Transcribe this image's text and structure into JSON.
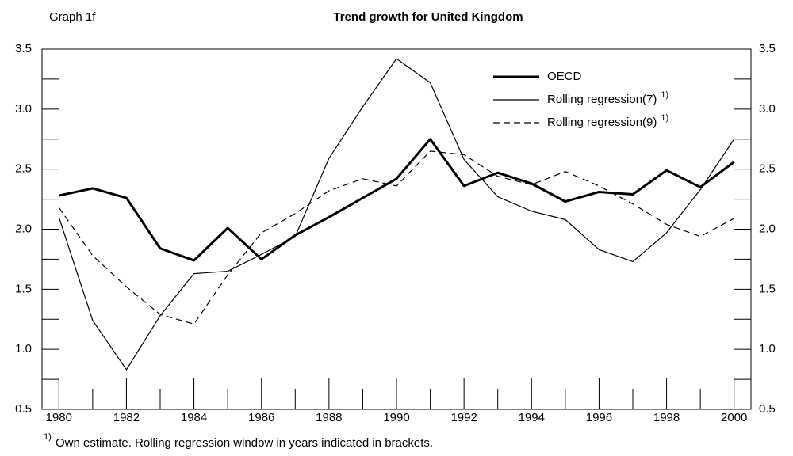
{
  "chart_data": {
    "type": "line",
    "label": "Graph 1f",
    "title": "Trend growth for United Kingdom",
    "x": [
      1980,
      1981,
      1982,
      1983,
      1984,
      1985,
      1986,
      1987,
      1988,
      1989,
      1990,
      1991,
      1992,
      1993,
      1994,
      1995,
      1996,
      1997,
      1998,
      1999,
      2000
    ],
    "series": [
      {
        "name": "OECD",
        "color": "#000000",
        "width": 3,
        "style": "solid",
        "values": [
          2.28,
          2.34,
          2.26,
          1.84,
          1.74,
          2.01,
          1.75,
          1.95,
          2.1,
          2.26,
          2.42,
          2.75,
          2.36,
          2.47,
          2.38,
          2.23,
          2.31,
          2.29,
          2.49,
          2.35,
          2.56
        ]
      },
      {
        "name": "Rolling regression(7)",
        "note": "1)",
        "color": "#000000",
        "width": 1.2,
        "style": "solid",
        "values": [
          2.1,
          1.24,
          0.83,
          1.28,
          1.63,
          1.65,
          1.79,
          1.94,
          2.59,
          3.02,
          3.42,
          3.22,
          2.58,
          2.27,
          2.15,
          2.08,
          1.83,
          1.73,
          1.97,
          2.33,
          2.75
        ]
      },
      {
        "name": "Rolling regression(9)",
        "note": "1)",
        "color": "#000000",
        "width": 1.2,
        "style": "dashed",
        "values": [
          2.18,
          1.78,
          1.52,
          1.29,
          1.21,
          1.62,
          1.97,
          2.13,
          2.32,
          2.42,
          2.36,
          2.65,
          2.62,
          2.44,
          2.37,
          2.48,
          2.36,
          2.21,
          2.04,
          1.94,
          2.09
        ]
      }
    ],
    "xlim": [
      1979.5,
      2000.5
    ],
    "xticks": [
      1980,
      1982,
      1984,
      1986,
      1988,
      1990,
      1992,
      1994,
      1996,
      1998,
      2000
    ],
    "xminorticks": [
      1981,
      1983,
      1985,
      1987,
      1989,
      1991,
      1993,
      1995,
      1997,
      1999
    ],
    "ylim": [
      0.5,
      3.5
    ],
    "yticks": [
      {
        "value": 0.5,
        "label": "0.5"
      },
      {
        "value": 1,
        "label": "1.0"
      },
      {
        "value": 1.5,
        "label": "1.5"
      },
      {
        "value": 2,
        "label": "2.0"
      },
      {
        "value": 2.5,
        "label": "2.5"
      },
      {
        "value": 3,
        "label": "3.0"
      },
      {
        "value": 3.5,
        "label": "3.5"
      }
    ],
    "yminorticks": [
      0.75,
      1.25,
      1.75,
      2.25,
      2.75,
      3.25
    ],
    "right_axis_labels": true,
    "legend": "upper-right",
    "footnote": {
      "marker": "1)",
      "text": "Own estimate. Rolling regression window in years indicated in brackets."
    }
  }
}
